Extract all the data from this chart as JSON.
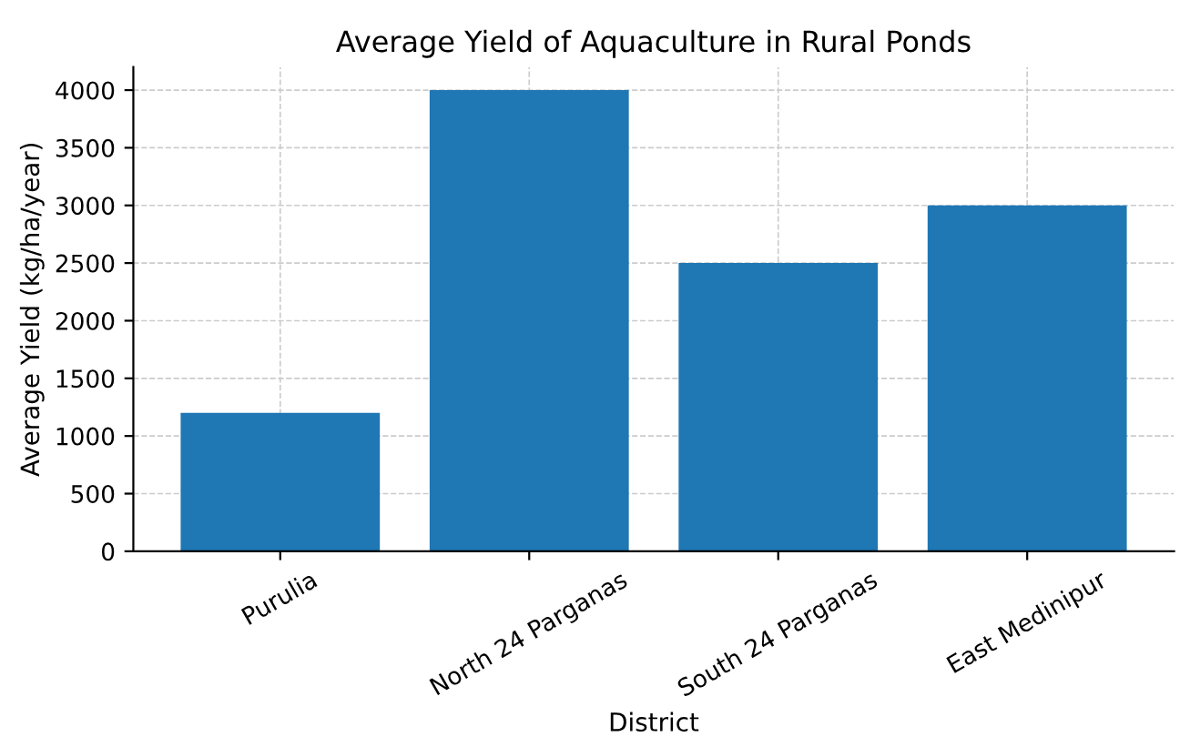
{
  "chart_data": {
    "type": "bar",
    "title": "Average Yield of Aquaculture in Rural Ponds",
    "xlabel": "District",
    "ylabel": "Average Yield (kg/ha/year)",
    "categories": [
      "Purulia",
      "North 24 Parganas",
      "South 24 Parganas",
      "East Medinipur"
    ],
    "values": [
      1200,
      4000,
      2500,
      3000
    ],
    "color": "#1f77b4",
    "ylim": [
      0,
      4200
    ],
    "yticks": [
      0,
      500,
      1000,
      1500,
      2000,
      2500,
      3000,
      3500,
      4000
    ],
    "grid": true,
    "line_style": "dashed"
  }
}
